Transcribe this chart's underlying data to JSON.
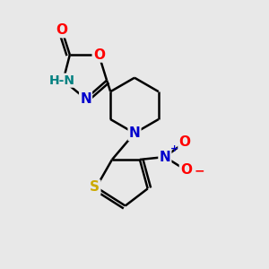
{
  "background_color": "#e8e8e8",
  "atom_colors": {
    "O": "#ff0000",
    "N": "#0000cc",
    "S": "#ccaa00",
    "C": "black",
    "H": "#008080"
  },
  "bond_width": 1.8,
  "font_size": 11
}
